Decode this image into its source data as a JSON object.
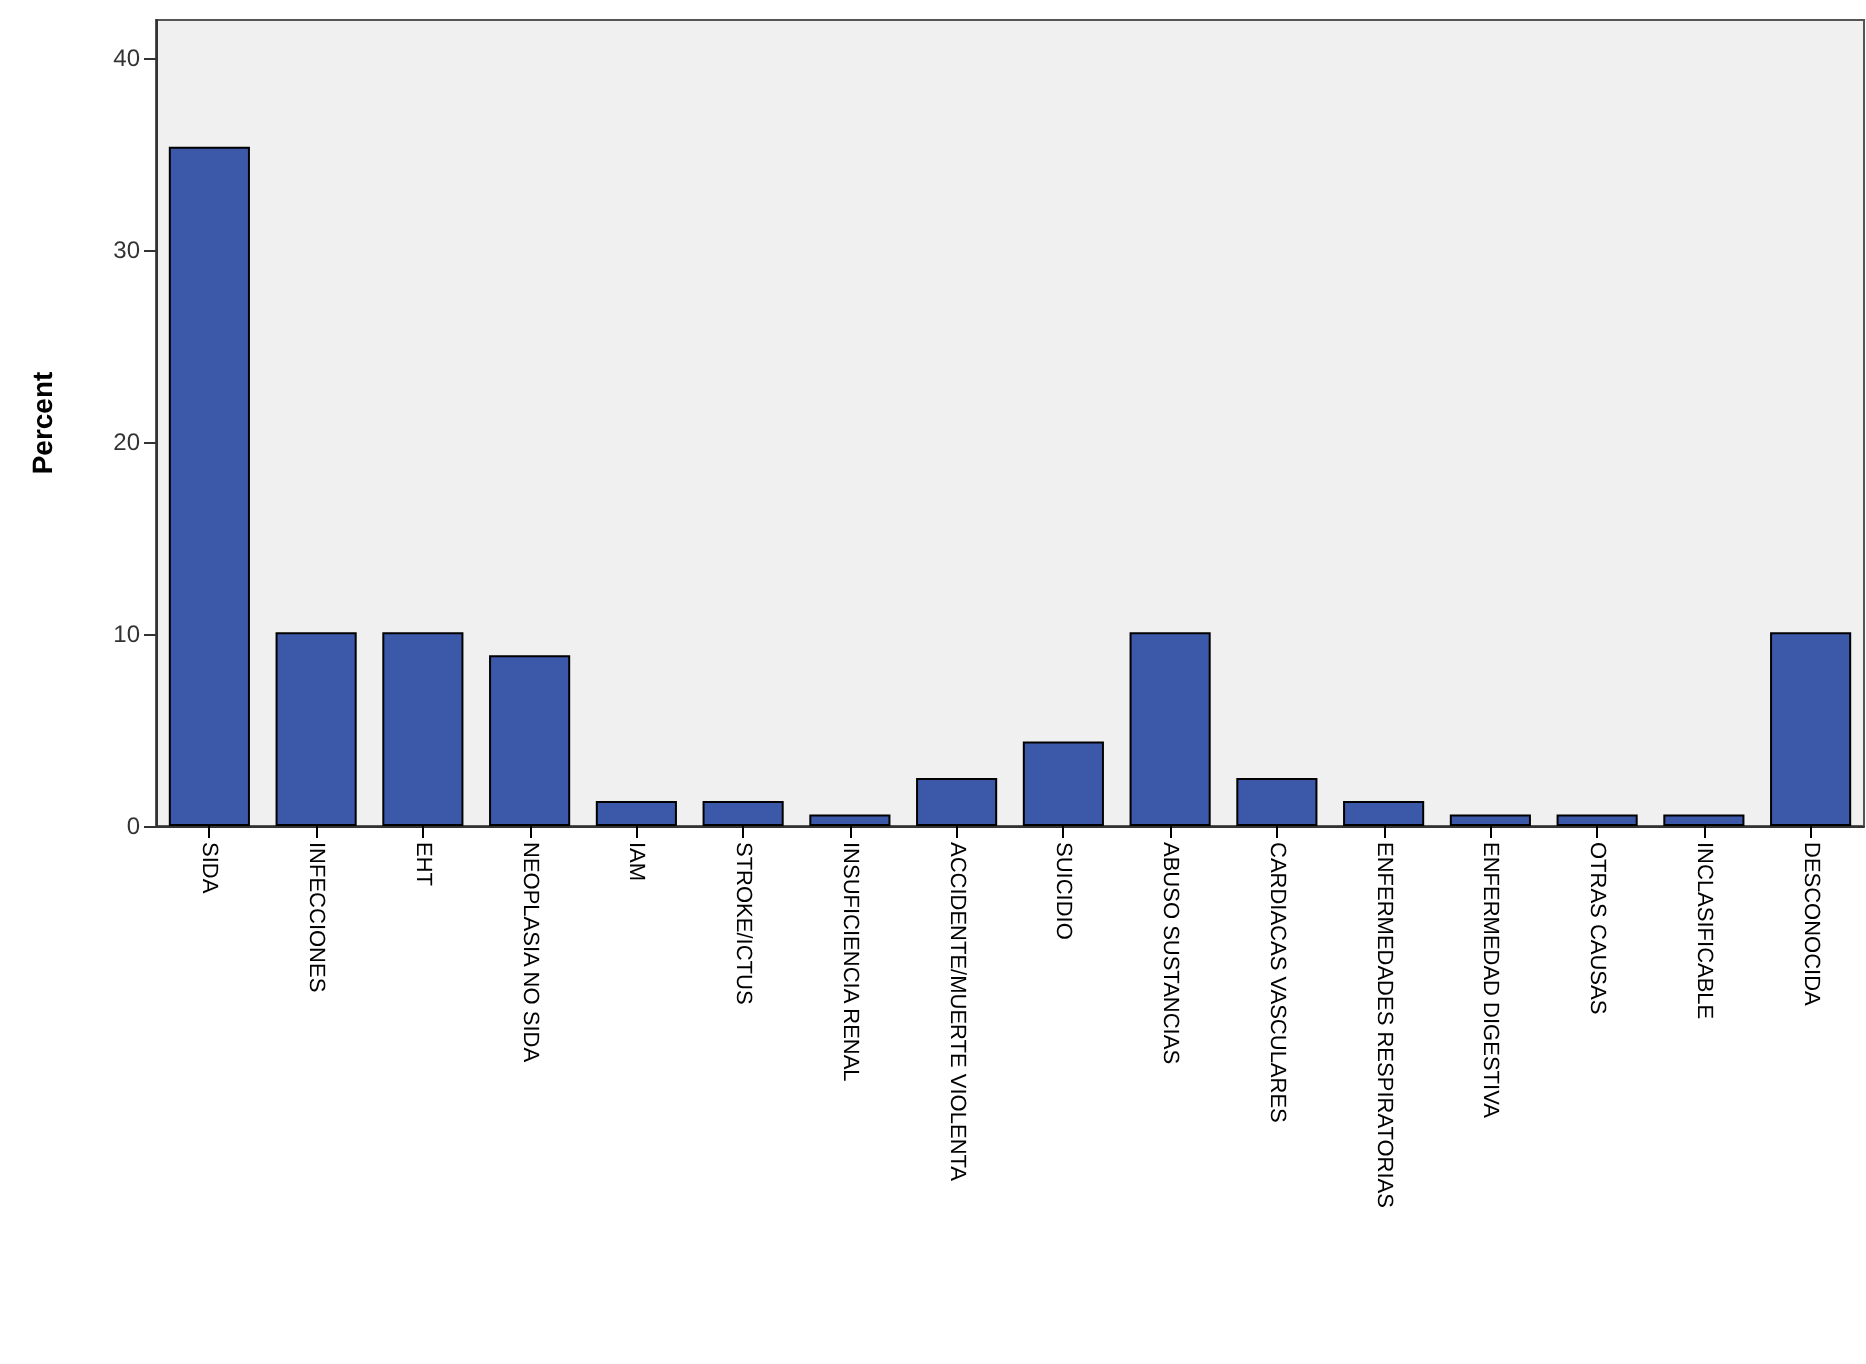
{
  "chart_data": {
    "type": "bar",
    "ylabel": "Percent",
    "categories": [
      "SIDA",
      "INFECCIONES",
      "EHT",
      "NEOPLASIA NO SIDA",
      "IAM",
      "STROKE/ICTUS",
      "INSUFICIENCIA RENAL",
      "ACCIDENTE/MUERTE VIOLENTA",
      "SUICIDIO",
      "ABUSO SUSTANCIAS",
      "CARDIACAS VASCULARES",
      "ENFERMEDADES RESPIRATORIAS",
      "ENFERMEDAD DIGESTIVA",
      "OTRAS CAUSAS",
      "INCLASIFICABLE",
      "DESCONOCIDA"
    ],
    "values": [
      35.4,
      10.1,
      10.1,
      8.9,
      1.3,
      1.3,
      0.6,
      2.5,
      4.4,
      10.1,
      2.5,
      1.3,
      0.6,
      0.6,
      0.6,
      10.1
    ],
    "color": "#3c58a8",
    "ylim": [
      0,
      42
    ],
    "yticks": [
      0,
      10,
      20,
      30,
      40
    ],
    "grid": false
  }
}
